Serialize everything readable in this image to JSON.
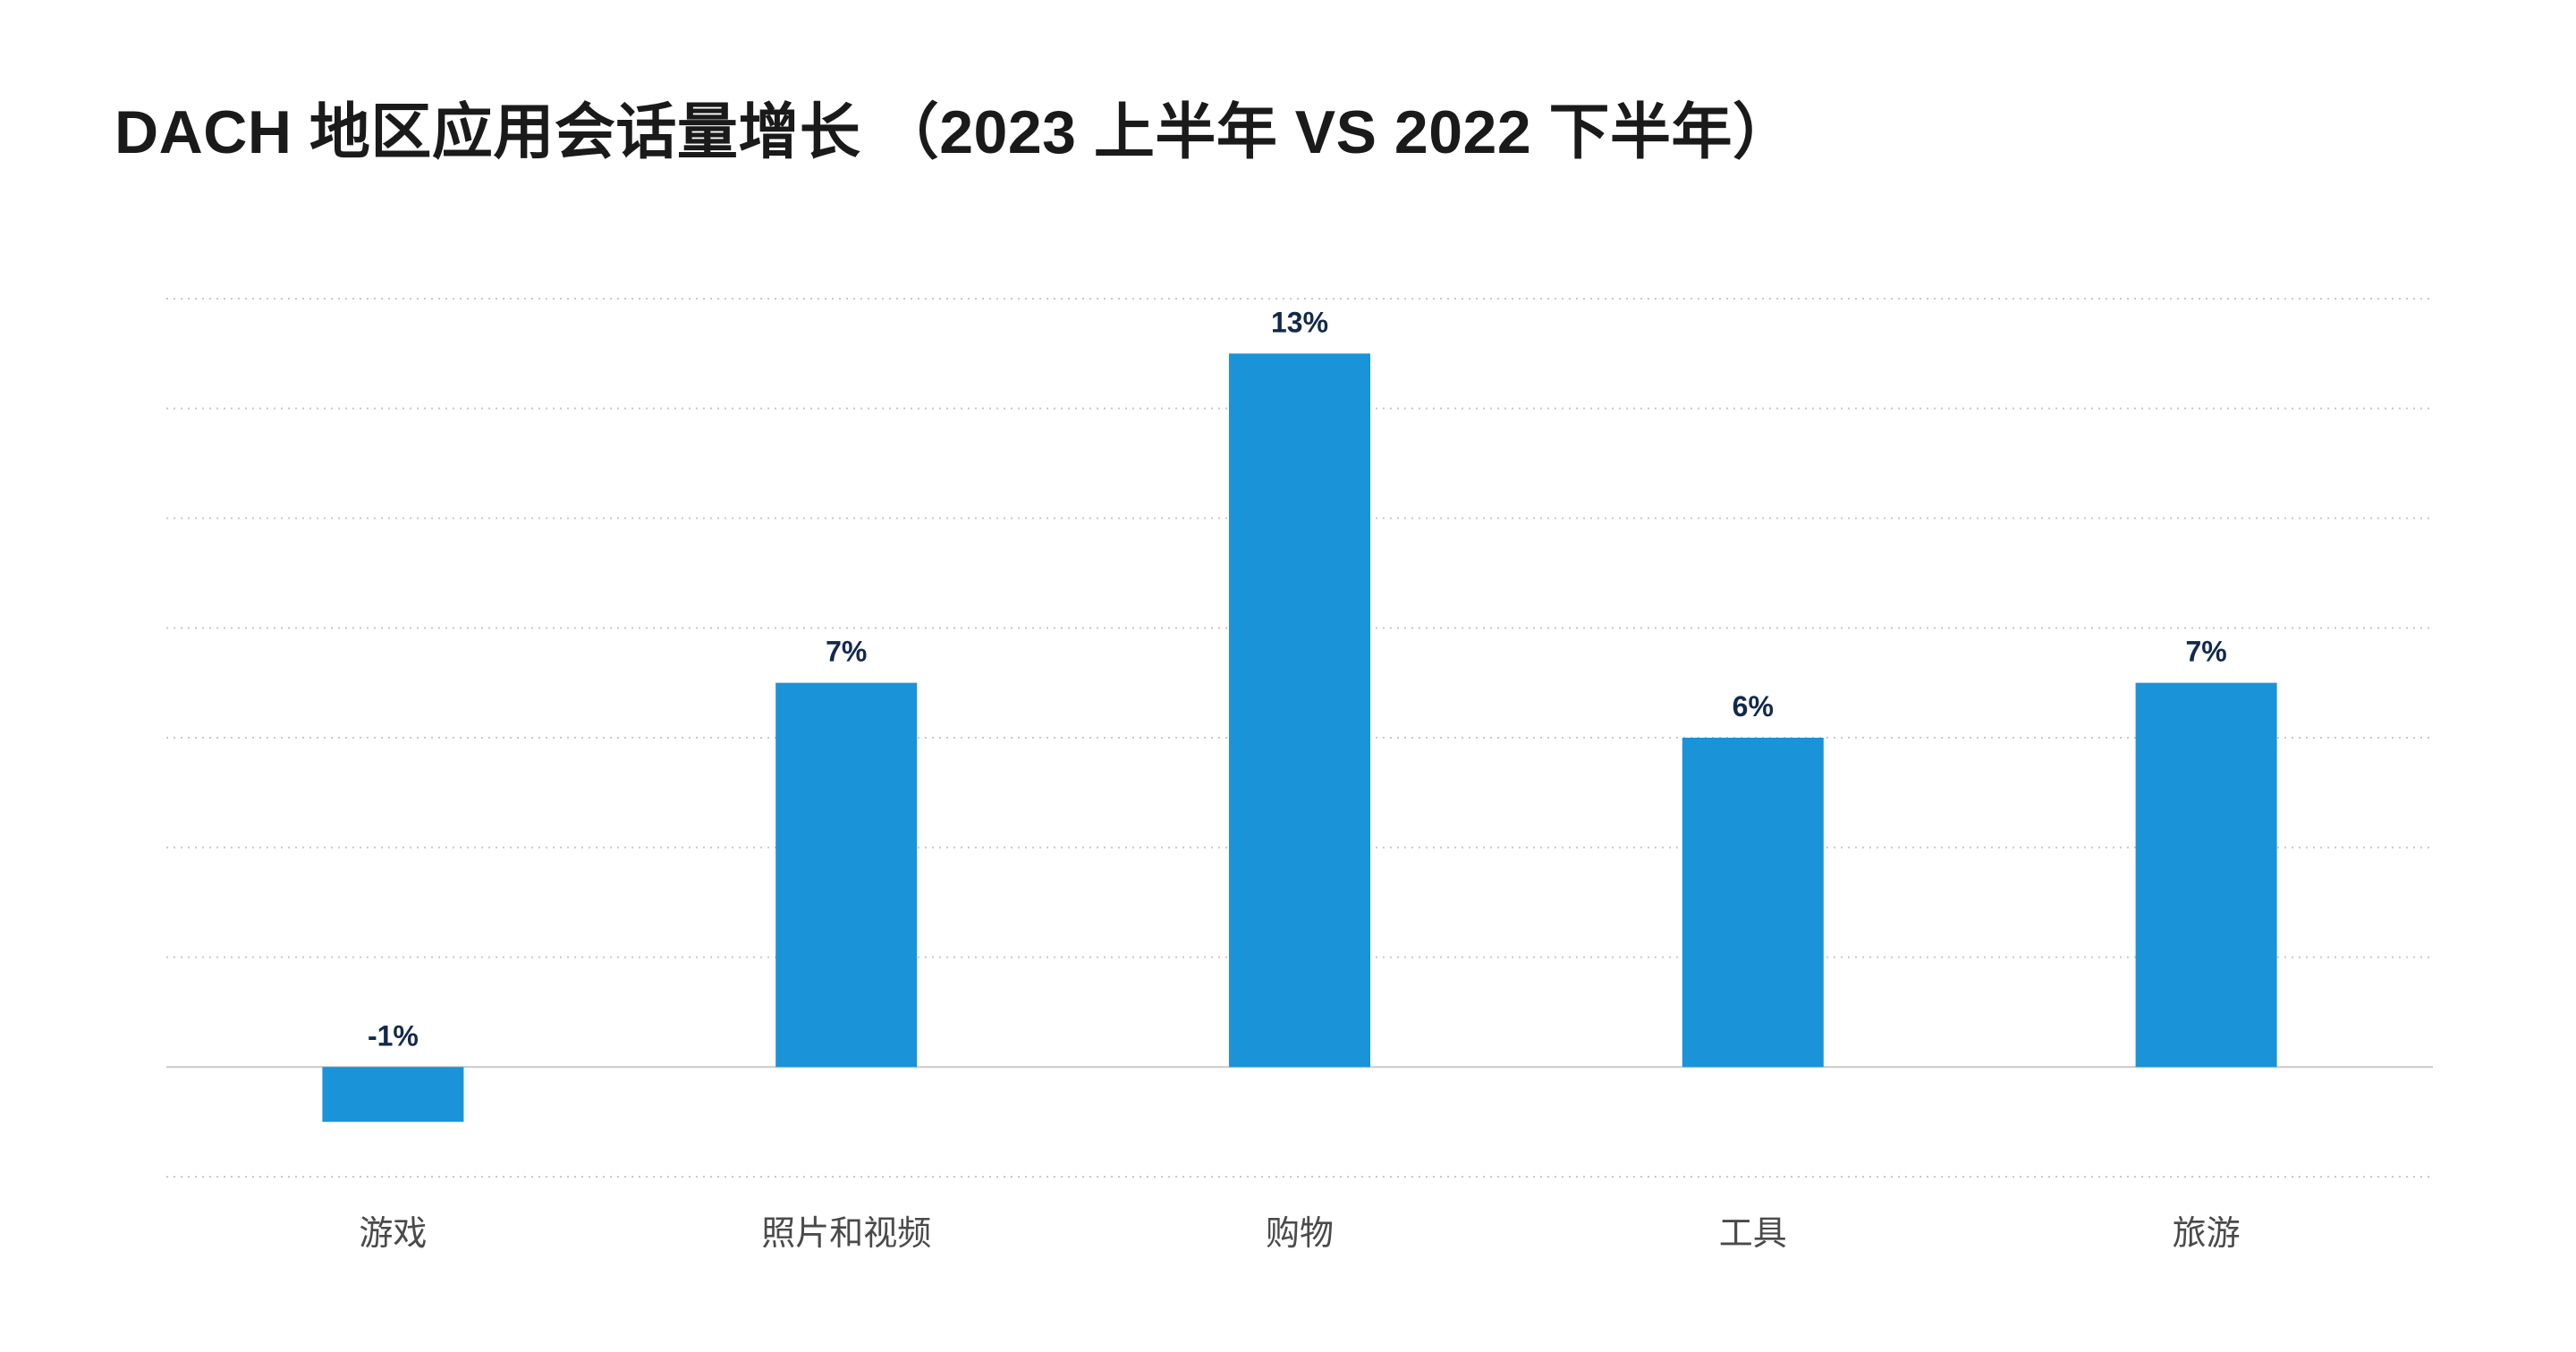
{
  "title": "DACH 地区应用会话量增长 （2023 上半年  VS 2022 下半年）",
  "colors": {
    "bar": "#1a93d8",
    "grid": "#c8c8c8",
    "value_label": "#13294b",
    "category_label": "#4a4a4a"
  },
  "chart_data": {
    "type": "bar",
    "title": "DACH 地区应用会话量增长 （2023 上半年  VS 2022 下半年）",
    "categories": [
      "游戏",
      "照片和视频",
      "购物",
      "工具",
      "旅游"
    ],
    "values": [
      -1,
      7,
      13,
      6,
      7
    ],
    "value_labels": [
      "-1%",
      "7%",
      "13%",
      "6%",
      "7%"
    ],
    "ylim": [
      -2,
      14
    ],
    "y_unit": "%",
    "grid": true,
    "gridline_values": [
      -2,
      0,
      2,
      4,
      6,
      8,
      10,
      12,
      14
    ],
    "show_y_tick_labels": false,
    "legend": "none"
  }
}
